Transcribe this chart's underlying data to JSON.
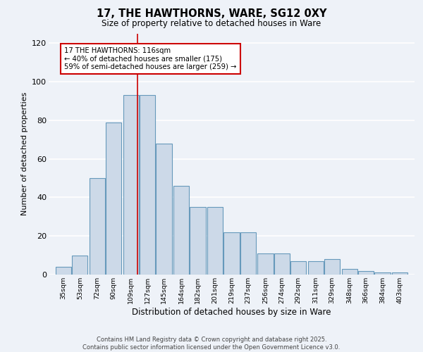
{
  "title_line1": "17, THE HAWTHORNS, WARE, SG12 0XY",
  "title_line2": "Size of property relative to detached houses in Ware",
  "xlabel": "Distribution of detached houses by size in Ware",
  "ylabel": "Number of detached properties",
  "bar_labels": [
    "35sqm",
    "53sqm",
    "72sqm",
    "90sqm",
    "109sqm",
    "127sqm",
    "145sqm",
    "164sqm",
    "182sqm",
    "201sqm",
    "219sqm",
    "237sqm",
    "256sqm",
    "274sqm",
    "292sqm",
    "311sqm",
    "329sqm",
    "348sqm",
    "366sqm",
    "384sqm",
    "403sqm"
  ],
  "bar_values": [
    4,
    10,
    50,
    79,
    93,
    93,
    68,
    46,
    35,
    35,
    22,
    22,
    11,
    11,
    7,
    7,
    8,
    3,
    2,
    1,
    1
  ],
  "bar_color": "#ccd9e8",
  "bar_edge_color": "#6699bb",
  "annotation_text": "17 THE HAWTHORNS: 116sqm\n← 40% of detached houses are smaller (175)\n59% of semi-detached houses are larger (259) →",
  "vline_x": 116,
  "vline_color": "#cc0000",
  "annotation_box_color": "#ffffff",
  "annotation_box_edge_color": "#cc0000",
  "ylim": [
    0,
    125
  ],
  "yticks": [
    0,
    20,
    40,
    60,
    80,
    100,
    120
  ],
  "footer_text": "Contains HM Land Registry data © Crown copyright and database right 2025.\nContains public sector information licensed under the Open Government Licence v3.0.",
  "background_color": "#eef2f8",
  "grid_color": "#ffffff",
  "bin_width": 18
}
